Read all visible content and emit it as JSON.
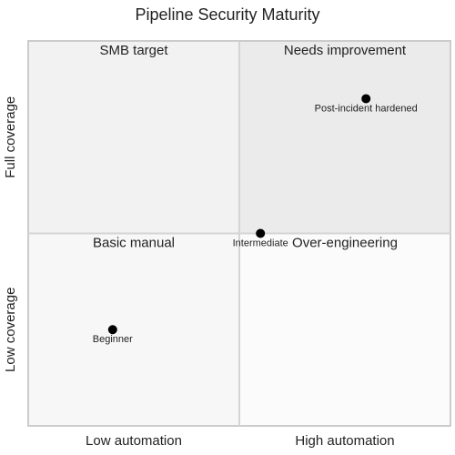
{
  "chart_data": {
    "type": "quadrant",
    "title": "Pipeline Security Maturity",
    "x_axis": {
      "low": "Low automation",
      "high": "High automation"
    },
    "y_axis": {
      "low": "Low coverage",
      "high": "Full coverage"
    },
    "quadrants": [
      {
        "label": "SMB target",
        "color": "#f2f2f2"
      },
      {
        "label": "Needs improvement",
        "color": "#ebebeb"
      },
      {
        "label": "Basic manual",
        "color": "#f7f7f7"
      },
      {
        "label": "Over-engineering",
        "color": "#fbfbfb"
      }
    ],
    "xlim": [
      0,
      1
    ],
    "ylim": [
      0,
      1
    ],
    "point_color": "#000000",
    "points": [
      {
        "label": "Post-incident hardened",
        "x": 0.8,
        "y": 0.85
      },
      {
        "label": "Intermediate",
        "x": 0.55,
        "y": 0.5
      },
      {
        "label": "Beginner",
        "x": 0.2,
        "y": 0.25
      }
    ]
  }
}
